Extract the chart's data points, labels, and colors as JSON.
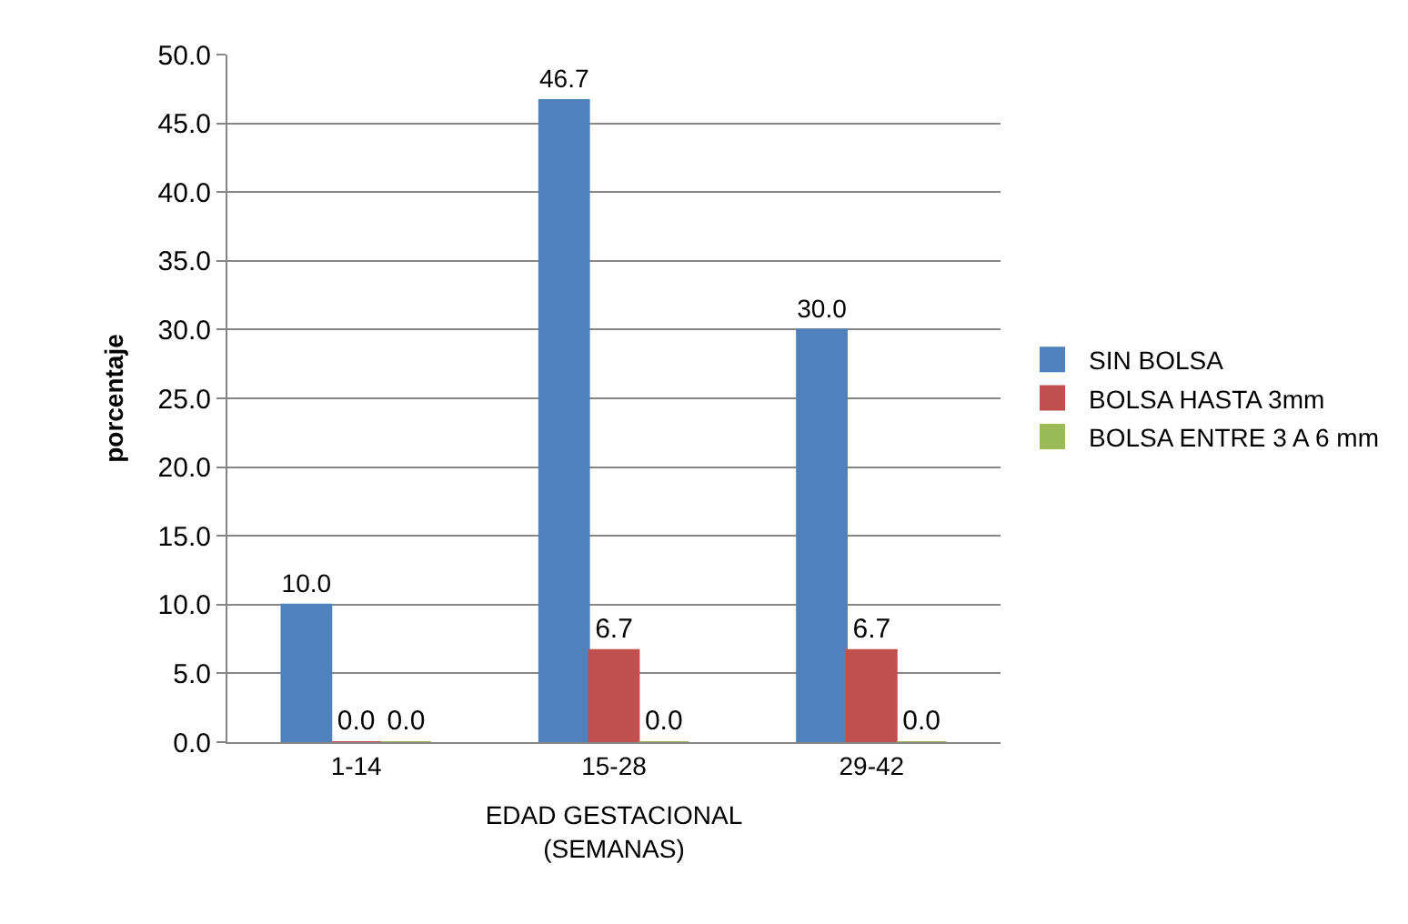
{
  "chart_data": {
    "type": "bar",
    "xlabel": "EDAD GESTACIONAL\n(SEMANAS)",
    "ylabel": "porcentaje",
    "categories": [
      "1-14",
      "15-28",
      "29-42"
    ],
    "series": [
      {
        "name": "SIN BOLSA",
        "color": "#4f81bd",
        "values": [
          10,
          46.7,
          30
        ],
        "value_labels": [
          "10.0",
          "46.7",
          "30.0"
        ]
      },
      {
        "name": "BOLSA HASTA 3mm",
        "color": "#c0504d",
        "values": [
          0,
          6.7,
          6.7
        ],
        "value_labels": [
          "0.0",
          "6.7",
          "6.7"
        ]
      },
      {
        "name": "BOLSA ENTRE 3 A 6 mm",
        "color": "#9bbb59",
        "values": [
          0,
          0,
          0
        ],
        "value_labels": [
          "0.0",
          "0.0",
          "0.0"
        ]
      }
    ],
    "ylim": [
      0,
      50
    ],
    "yticks": [
      {
        "value": 0,
        "label": "0.0"
      },
      {
        "value": 5,
        "label": "5.0"
      },
      {
        "value": 10,
        "label": "10.0"
      },
      {
        "value": 15,
        "label": "15.0"
      },
      {
        "value": 20,
        "label": "20.0"
      },
      {
        "value": 25,
        "label": "25.0"
      },
      {
        "value": 30,
        "label": "30.0"
      },
      {
        "value": 35,
        "label": "35.0"
      },
      {
        "value": 40,
        "label": "40.0"
      },
      {
        "value": 45,
        "label": "45.0"
      },
      {
        "value": 50,
        "label": "50.0"
      }
    ],
    "grid": "y",
    "legend": "right"
  }
}
